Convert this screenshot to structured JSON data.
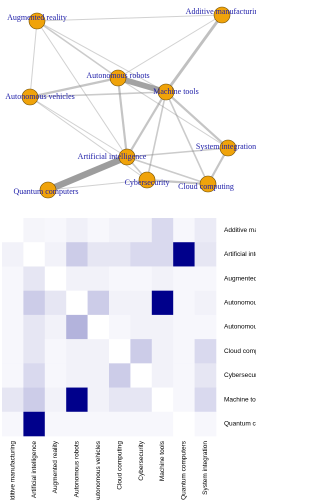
{
  "chart_data": [
    {
      "type": "network",
      "nodes": [
        "Augmented reality",
        "Additive manufacturing",
        "Autonomous robots",
        "Machine tools",
        "Autonomous vehicles",
        "System integration",
        "Artificial intelligence",
        "Cloud computing",
        "Quantum computers",
        "Cybersecurity"
      ],
      "node_color": "#f0a30a",
      "label_color": "#1c1ca8",
      "edge_color": "#8c8c8c",
      "edges": [
        {
          "source": 6,
          "target": 8,
          "weight": 10
        },
        {
          "source": 2,
          "target": 3,
          "weight": 9
        },
        {
          "source": 3,
          "target": 1,
          "weight": 4
        },
        {
          "source": 6,
          "target": 3,
          "weight": 3
        },
        {
          "source": 6,
          "target": 2,
          "weight": 3
        },
        {
          "source": 2,
          "target": 4,
          "weight": 3
        },
        {
          "source": 3,
          "target": 5,
          "weight": 3
        },
        {
          "source": 5,
          "target": 7,
          "weight": 3
        },
        {
          "source": 7,
          "target": 9,
          "weight": 3
        },
        {
          "source": 6,
          "target": 9,
          "weight": 2
        },
        {
          "source": 6,
          "target": 5,
          "weight": 2
        },
        {
          "source": 6,
          "target": 7,
          "weight": 2
        },
        {
          "source": 0,
          "target": 2,
          "weight": 2
        },
        {
          "source": 4,
          "target": 3,
          "weight": 2
        },
        {
          "source": 9,
          "target": 3,
          "weight": 2
        },
        {
          "source": 7,
          "target": 3,
          "weight": 2
        },
        {
          "source": 0,
          "target": 3,
          "weight": 1
        },
        {
          "source": 0,
          "target": 4,
          "weight": 1
        },
        {
          "source": 4,
          "target": 6,
          "weight": 1
        },
        {
          "source": 4,
          "target": 9,
          "weight": 1
        },
        {
          "source": 2,
          "target": 1,
          "weight": 1
        },
        {
          "source": 0,
          "target": 6,
          "weight": 1
        },
        {
          "source": 0,
          "target": 1,
          "weight": 1
        },
        {
          "source": 2,
          "target": 5,
          "weight": 1
        },
        {
          "source": 8,
          "target": 9,
          "weight": 1
        }
      ]
    },
    {
      "type": "heatmap",
      "rows": [
        "Additive manufacturing",
        "Artificial intelligence",
        "Augmented reality",
        "Autonomous robots",
        "Autonomous vehicles",
        "Cloud computing",
        "Cybersecurity",
        "Machine tools",
        "Quantum computers"
      ],
      "columns": [
        "Additive manufacturing",
        "Artificial intelligence",
        "Augmented reality",
        "Autonomous robots",
        "Autonomous vehicles",
        "Cloud computing",
        "Cybersecurity",
        "Machine tools",
        "Quantum computers",
        "System integration"
      ],
      "color": "#00008b",
      "values": [
        [
          0,
          0.04,
          0.03,
          0.06,
          0.03,
          0.05,
          0.05,
          0.15,
          0.03,
          0.08
        ],
        [
          0.05,
          0,
          0.05,
          0.2,
          0.1,
          0.1,
          0.15,
          0.15,
          1,
          0.1
        ],
        [
          0.03,
          0.1,
          0,
          0.05,
          0.05,
          0.03,
          0.03,
          0.05,
          0.03,
          0.03
        ],
        [
          0.03,
          0.2,
          0.1,
          0,
          0.2,
          0.05,
          0.05,
          1,
          0.03,
          0.05
        ],
        [
          0.03,
          0.1,
          0.05,
          0.3,
          0,
          0.03,
          0.05,
          0.05,
          0.03,
          0.03
        ],
        [
          0.03,
          0.1,
          0.03,
          0.05,
          0.05,
          0,
          0.2,
          0.05,
          0.03,
          0.15
        ],
        [
          0.03,
          0.15,
          0.03,
          0.05,
          0.05,
          0.2,
          0,
          0.05,
          0.03,
          0.1
        ],
        [
          0.1,
          0.2,
          0.05,
          1,
          0.05,
          0.1,
          0.1,
          0,
          0.03,
          0.15
        ],
        [
          0.03,
          1,
          0.03,
          0.03,
          0.03,
          0.03,
          0.03,
          0.03,
          0,
          0.03
        ]
      ]
    }
  ]
}
